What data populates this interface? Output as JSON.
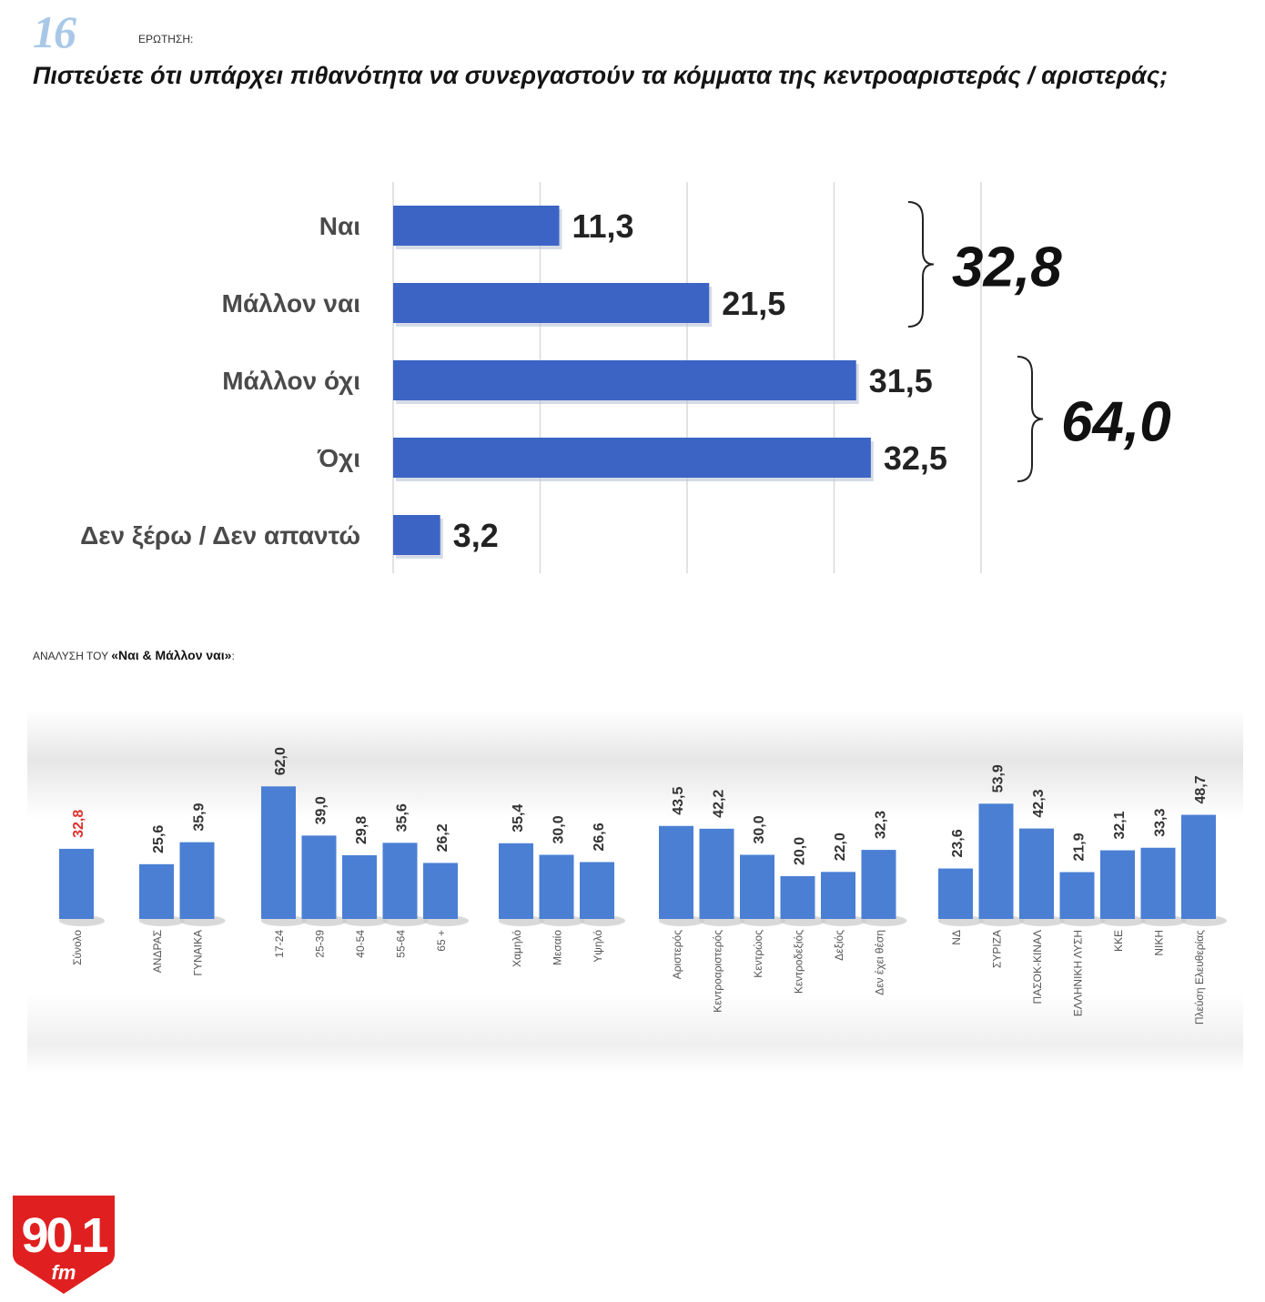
{
  "header": {
    "question_number": "16",
    "question_label": "ΕΡΩΤΗΣΗ:",
    "question_text": "Πιστεύετε ότι υπάρχει πιθανότητα να συνεργαστούν τα κόμματα της κεντροαριστεράς / αριστεράς;"
  },
  "chart_data": [
    {
      "type": "bar",
      "orientation": "horizontal",
      "title": "Πιστεύετε ότι υπάρχει πιθανότητα να συνεργαστούν τα κόμματα της κεντροαριστεράς / αριστεράς;",
      "categories": [
        "Ναι",
        "Μάλλον ναι",
        "Μάλλον όχι",
        "Όχι",
        "Δεν ξέρω / Δεν απαντώ"
      ],
      "values": [
        11.3,
        21.5,
        31.5,
        32.5,
        3.2
      ],
      "value_labels": [
        "11,3",
        "21,5",
        "31,5",
        "32,5",
        "3,2"
      ],
      "xlim": [
        0,
        50
      ],
      "grid": true,
      "bar_color": "#3b64c4",
      "groups": [
        {
          "members": [
            "Ναι",
            "Μάλλον ναι"
          ],
          "total": 32.8,
          "label": "32,8"
        },
        {
          "members": [
            "Μάλλον όχι",
            "Όχι"
          ],
          "total": 64.0,
          "label": "64,0"
        }
      ]
    },
    {
      "type": "bar",
      "orientation": "vertical",
      "title": "ΑΝΑΛΥΣΗ ΤΟΥ «Ναι & Μάλλον ναι»:",
      "title_prefix": "ΑΝΑΛΥΣΗ ΤΟΥ ",
      "title_bold": "«Ναι & Μάλλον ναι»",
      "title_suffix": ":",
      "ylim": [
        0,
        70
      ],
      "bar_color": "#4a7fd4",
      "highlight_color": "#e03030",
      "groups": [
        {
          "categories": [
            "Σύνολο"
          ],
          "values": [
            32.8
          ],
          "labels": [
            "32,8"
          ],
          "highlight": true
        },
        {
          "categories": [
            "ΑΝΔΡΑΣ",
            "ΓΥΝΑΙΚΑ"
          ],
          "values": [
            25.6,
            35.9
          ],
          "labels": [
            "25,6",
            "35,9"
          ]
        },
        {
          "categories": [
            "17-24",
            "25-39",
            "40-54",
            "55-64",
            "65 +"
          ],
          "values": [
            62.0,
            39.0,
            29.8,
            35.6,
            26.2
          ],
          "labels": [
            "62,0",
            "39,0",
            "29,8",
            "35,6",
            "26,2"
          ]
        },
        {
          "categories": [
            "Χαμηλό",
            "Μεσαίο",
            "Υψηλό"
          ],
          "values": [
            35.4,
            30.0,
            26.6
          ],
          "labels": [
            "35,4",
            "30,0",
            "26,6"
          ]
        },
        {
          "categories": [
            "Αριστερός",
            "Κεντροαριστερός",
            "Κεντρώος",
            "Κεντροδεξιός",
            "Δεξιός",
            "Δεν έχει θέση"
          ],
          "values": [
            43.5,
            42.2,
            30.0,
            20.0,
            22.0,
            32.3
          ],
          "labels": [
            "43,5",
            "42,2",
            "30,0",
            "20,0",
            "22,0",
            "32,3"
          ]
        },
        {
          "categories": [
            "ΝΔ",
            "ΣΥΡΙΖΑ",
            "ΠΑΣΟΚ-ΚΙΝΑΛ",
            "ΕΛΛΗΝΙΚΗ ΛΥΣΗ",
            "ΚΚΕ",
            "ΝΙΚΗ",
            "Πλεύση Ελευθερίας"
          ],
          "values": [
            23.6,
            53.9,
            42.3,
            21.9,
            32.1,
            33.3,
            48.7
          ],
          "labels": [
            "23,6",
            "53,9",
            "42,3",
            "21,9",
            "32,1",
            "33,3",
            "48,7"
          ]
        }
      ]
    }
  ],
  "logo": {
    "number": "90.1",
    "suffix": "fm",
    "color": "#e02020"
  }
}
